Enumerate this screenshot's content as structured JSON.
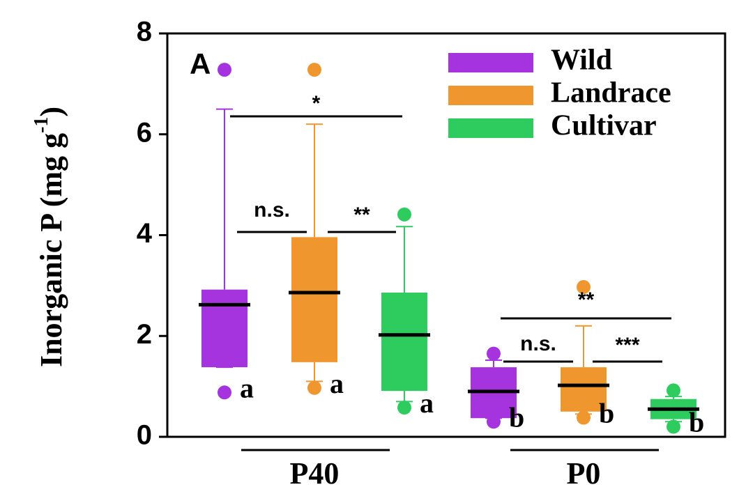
{
  "chart_data": {
    "type": "box",
    "panel_label": "A",
    "y_label": "Inorganic P (mg g",
    "y_label_sup": "-1",
    "y_label_end": ")",
    "categories": [
      "P40",
      "P0"
    ],
    "ylim": [
      0,
      8
    ],
    "yticks": [
      0,
      2,
      4,
      6,
      8
    ],
    "legend": "upper right",
    "series": [
      {
        "name": "Wild",
        "color": "#a634de",
        "boxes": [
          {
            "whislo": 1.38,
            "q1": 1.38,
            "med": 2.62,
            "q3": 2.92,
            "whishi": 6.5,
            "fliers": [
              7.28,
              0.88
            ],
            "letter": "a"
          },
          {
            "whislo": 0.37,
            "q1": 0.37,
            "med": 0.9,
            "q3": 1.38,
            "whishi": 1.52,
            "fliers": [
              1.65,
              0.3
            ],
            "letter": "b"
          }
        ]
      },
      {
        "name": "Landrace",
        "color": "#f0962e",
        "boxes": [
          {
            "whislo": 1.1,
            "q1": 1.48,
            "med": 2.86,
            "q3": 3.96,
            "whishi": 6.2,
            "fliers": [
              7.28,
              0.97
            ],
            "letter": "a"
          },
          {
            "whislo": 0.45,
            "q1": 0.5,
            "med": 1.02,
            "q3": 1.38,
            "whishi": 2.2,
            "fliers": [
              2.97,
              0.38
            ],
            "letter": "b"
          }
        ]
      },
      {
        "name": "Cultivar",
        "color": "#2ecc5e",
        "boxes": [
          {
            "whislo": 0.7,
            "q1": 0.91,
            "med": 2.02,
            "q3": 2.86,
            "whishi": 4.17,
            "fliers": [
              4.41,
              0.58
            ],
            "letter": "a"
          },
          {
            "whislo": 0.3,
            "q1": 0.35,
            "med": 0.55,
            "q3": 0.75,
            "whishi": 0.8,
            "fliers": [
              0.92,
              0.2
            ],
            "letter": "b"
          }
        ]
      }
    ],
    "annotations": [
      {
        "text": "*"
      },
      {
        "text": "n.s."
      },
      {
        "text": "**"
      },
      {
        "text": "**"
      },
      {
        "text": "n.s."
      },
      {
        "text": "***"
      }
    ]
  }
}
